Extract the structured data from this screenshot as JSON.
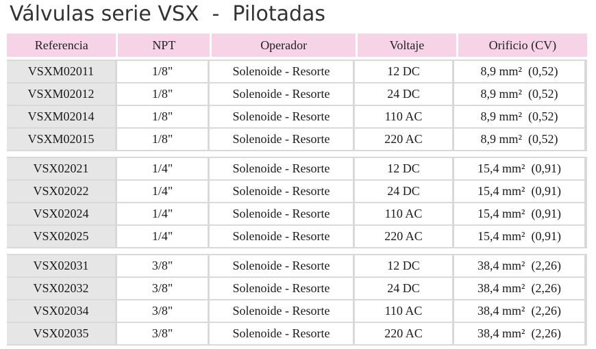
{
  "title": "Válvulas serie VSX  -  Pilotadas",
  "headers": [
    "Referencia",
    "NPT",
    "Operador",
    "Voltaje",
    "Orificio (CV)"
  ],
  "groups": [
    [
      [
        "VSXM02011",
        "1/8\"",
        "Solenoide - Resorte",
        "12 DC",
        "8,9 mm²  (0,52)"
      ],
      [
        "VSXM02012",
        "1/8\"",
        "Solenoide - Resorte",
        "24 DC",
        "8,9 mm²  (0,52)"
      ],
      [
        "VSXM02014",
        "1/8\"",
        "Solenoide - Resorte",
        "110 AC",
        "8,9 mm²  (0,52)"
      ],
      [
        "VSXM02015",
        "1/8\"",
        "Solenoide - Resorte",
        "220 AC",
        "8,9 mm²  (0,52)"
      ]
    ],
    [
      [
        "VSX02021",
        "1/4\"",
        "Solenoide - Resorte",
        "12 DC",
        "15,4 mm²  (0,91)"
      ],
      [
        "VSX02022",
        "1/4\"",
        "Solenoide - Resorte",
        "24 DC",
        "15,4 mm²  (0,91)"
      ],
      [
        "VSX02024",
        "1/4\"",
        "Solenoide - Resorte",
        "110 AC",
        "15,4 mm²  (0,91)"
      ],
      [
        "VSX02025",
        "1/4\"",
        "Solenoide - Resorte",
        "220 AC",
        "15,4 mm²  (0,91)"
      ]
    ],
    [
      [
        "VSX02031",
        "3/8\"",
        "Solenoide - Resorte",
        "12 DC",
        "38,4 mm²  (2,26)"
      ],
      [
        "VSX02032",
        "3/8\"",
        "Solenoide - Resorte",
        "24 DC",
        "38,4 mm²  (2,26)"
      ],
      [
        "VSX02034",
        "3/8\"",
        "Solenoide - Resorte",
        "110 AC",
        "38,4 mm²  (2,26)"
      ],
      [
        "VSX02035",
        "3/8\"",
        "Solenoide - Resorte",
        "220 AC",
        "38,4 mm²  (2,26)"
      ]
    ]
  ]
}
